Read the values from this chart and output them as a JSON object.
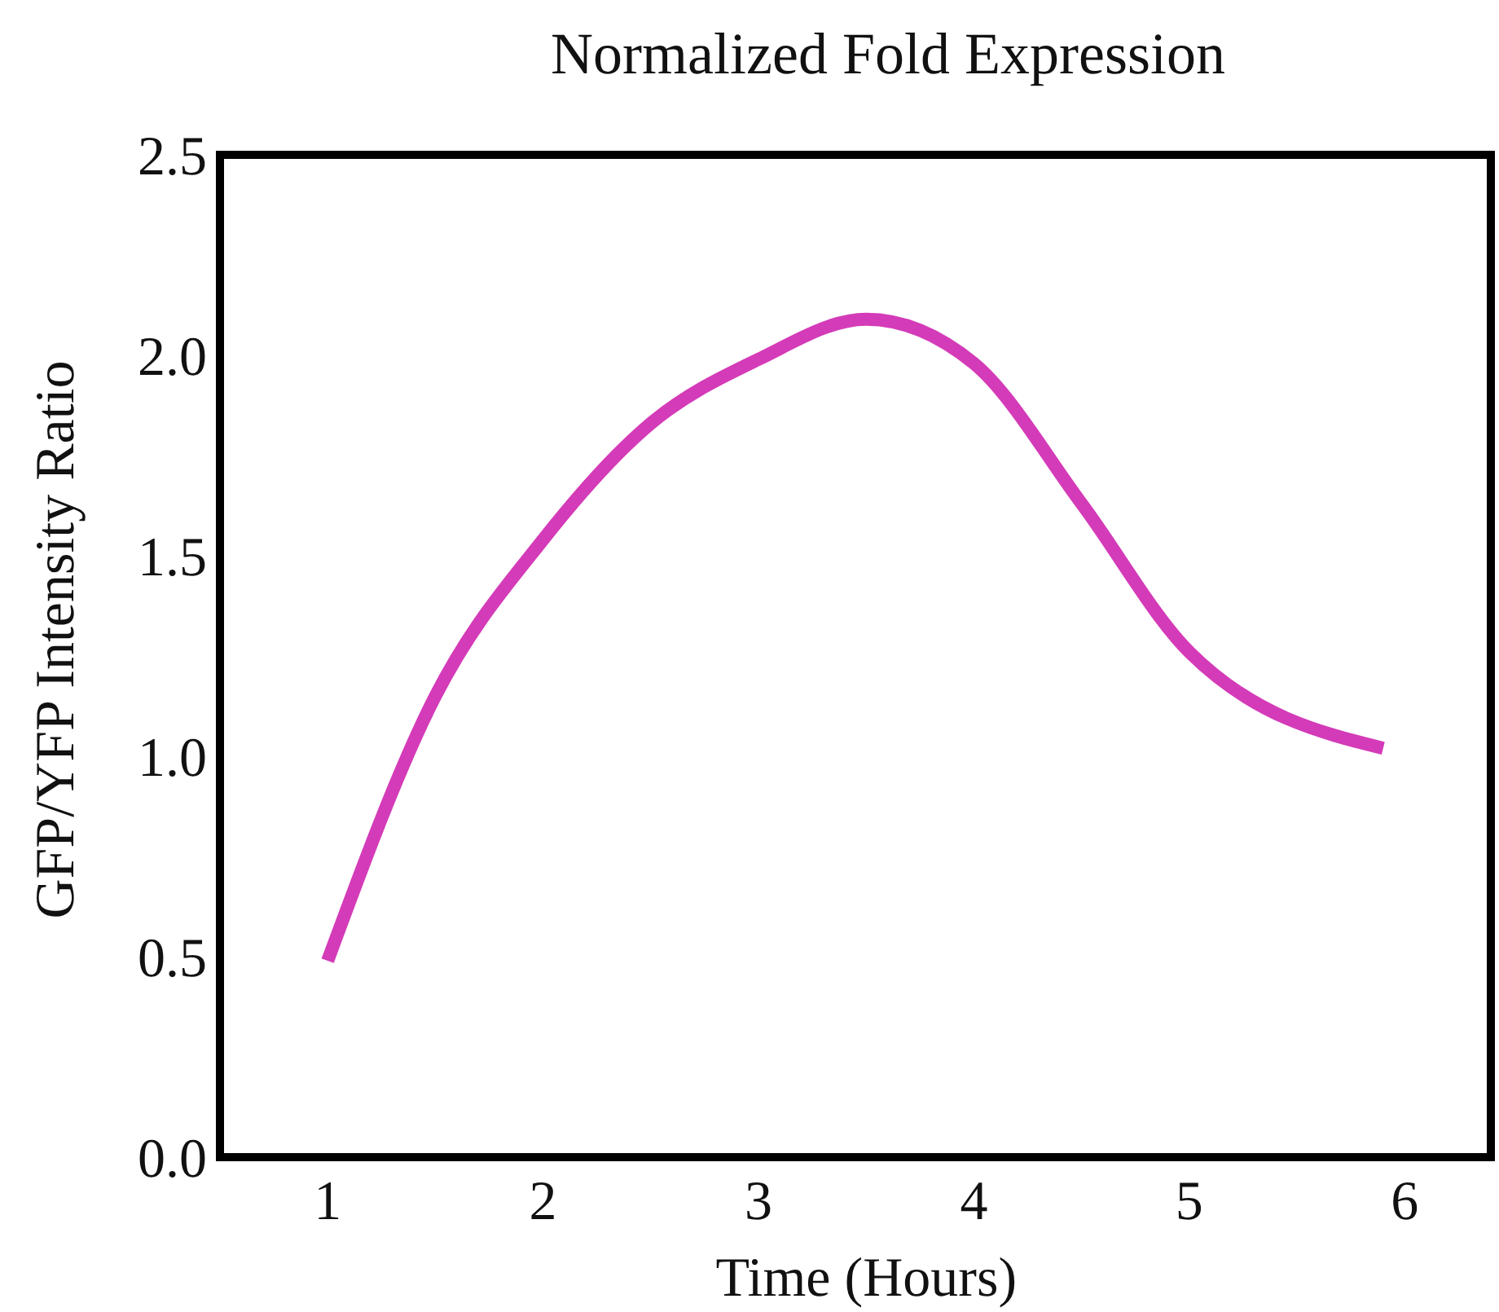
{
  "chart_data": {
    "type": "line",
    "title": "Normalized Fold Expression",
    "xlabel": "Time (Hours)",
    "ylabel": "GFP/YFP Intensity Ratio",
    "x": [
      1,
      1.5,
      2,
      2.5,
      3,
      3.5,
      4,
      4.5,
      5,
      5.9
    ],
    "series": [
      {
        "color": "#d43bb8",
        "values": [
          0.49,
          1.15,
          1.54,
          1.83,
          1.99,
          2.09,
          1.98,
          1.63,
          1.26,
          1.02
        ]
      }
    ],
    "xlim": [
      0.5,
      6.4
    ],
    "xticks": [
      1,
      2,
      3,
      4,
      5,
      6
    ],
    "ylim": [
      0,
      2.5
    ],
    "yticks": [
      {
        "value": 0,
        "label": "0.0"
      },
      {
        "value": 0.5,
        "label": "0.5"
      },
      {
        "value": 1,
        "label": "1.0"
      },
      {
        "value": 1.5,
        "label": "1.5"
      },
      {
        "value": 2,
        "label": "2.0"
      },
      {
        "value": 2.5,
        "label": "2.5"
      }
    ],
    "marker": "none",
    "line_style": "solid"
  }
}
